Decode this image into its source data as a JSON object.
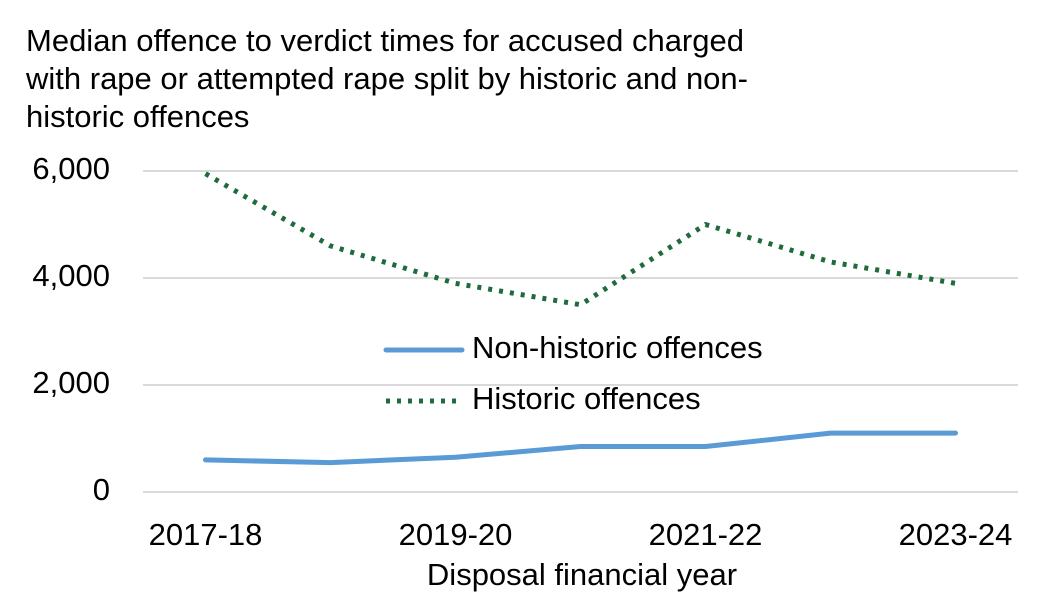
{
  "chart_data": {
    "type": "line",
    "title": "Median offence to verdict times for accused charged with rape or attempted rape split by historic and non-historic offences",
    "x_label": "Disposal financial year",
    "categories": [
      "2017-18",
      null,
      "2019-20",
      null,
      "2021-22",
      null,
      "2023-24"
    ],
    "series": [
      {
        "name": "Non-historic offences",
        "color": "#5b9bd5",
        "style": "solid",
        "values": [
          600,
          550,
          650,
          850,
          850,
          1100,
          1100
        ]
      },
      {
        "name": "Historic offences",
        "color": "#1e6b3c",
        "style": "dotted",
        "values": [
          5950,
          4600,
          3900,
          3500,
          5000,
          4300,
          3900
        ]
      }
    ],
    "ylim": [
      0,
      6000
    ],
    "yticks": [
      {
        "value": 0,
        "label": "0"
      },
      {
        "value": 2000,
        "label": "2,000"
      },
      {
        "value": 4000,
        "label": "4,000"
      },
      {
        "value": 6000,
        "label": "6,000"
      }
    ],
    "grid": true
  }
}
